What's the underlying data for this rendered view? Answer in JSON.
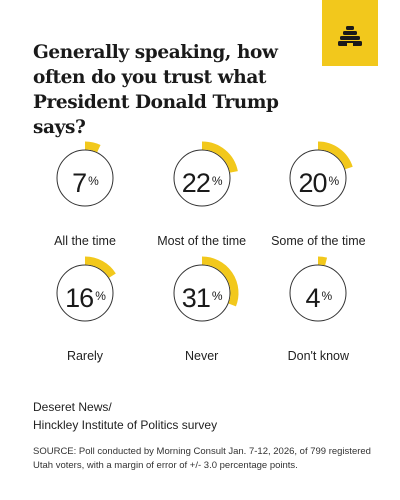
{
  "title": "Generally speaking, how often do you trust what President Donald Trump says?",
  "logo_icon": "beehive-icon",
  "accent_color": "#f2c81c",
  "chart_data": {
    "type": "donut-gauge",
    "unit": "%",
    "categories": [
      "All the time",
      "Most of the time",
      "Some of the time",
      "Rarely",
      "Never",
      "Don't know"
    ],
    "values": [
      7,
      22,
      20,
      16,
      31,
      4
    ],
    "grid": false
  },
  "source_credit": [
    "Deseret News/",
    "Hinckley Institute of Politics survey"
  ],
  "footnote": "SOURCE: Poll conducted by Morning Consult Jan. 7-12, 2026, of 799 registered Utah voters, with a margin of error of +/- 3.0 percentage points."
}
